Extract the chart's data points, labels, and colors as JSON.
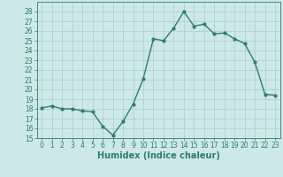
{
  "x": [
    0,
    1,
    2,
    3,
    4,
    5,
    6,
    7,
    8,
    9,
    10,
    11,
    12,
    13,
    14,
    15,
    16,
    17,
    18,
    19,
    20,
    21,
    22,
    23
  ],
  "y": [
    18.1,
    18.3,
    18.0,
    18.0,
    17.8,
    17.7,
    16.2,
    15.3,
    16.7,
    18.5,
    21.1,
    25.2,
    25.0,
    26.3,
    28.0,
    26.5,
    26.7,
    25.7,
    25.8,
    25.2,
    24.7,
    22.8,
    19.5,
    19.4
  ],
  "line_color": "#2e7d6e",
  "marker": "o",
  "marker_size": 2.0,
  "bg_color": "#cce8e8",
  "grid_color": "#aacccc",
  "xlabel": "Humidex (Indice chaleur)",
  "ylim": [
    15,
    29
  ],
  "xlim": [
    -0.5,
    23.5
  ],
  "yticks": [
    15,
    16,
    17,
    18,
    19,
    20,
    21,
    22,
    23,
    24,
    25,
    26,
    27,
    28
  ],
  "xticks": [
    0,
    1,
    2,
    3,
    4,
    5,
    6,
    7,
    8,
    9,
    10,
    11,
    12,
    13,
    14,
    15,
    16,
    17,
    18,
    19,
    20,
    21,
    22,
    23
  ],
  "tick_fontsize": 5.5,
  "xlabel_fontsize": 7.0,
  "linewidth": 1.0
}
